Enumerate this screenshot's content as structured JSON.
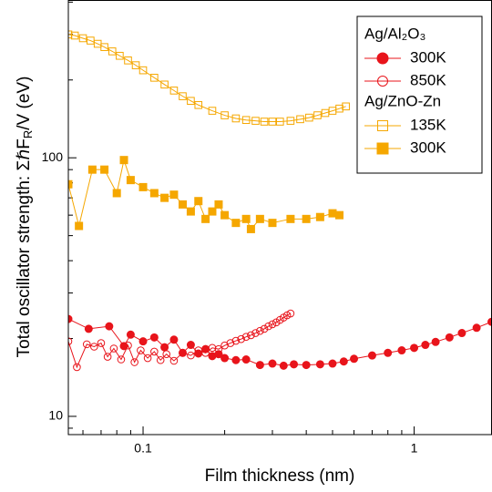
{
  "chart_data": {
    "type": "scatter",
    "xlabel": "Film thickness (nm)",
    "ylabel": [
      {
        "text": "Total oscillator strength: ΣℏF"
      },
      {
        "text": "R",
        "sub": true
      },
      {
        "text": "/V (eV)"
      }
    ],
    "xlog": true,
    "ylog": true,
    "xlim": [
      0.053,
      1.93
    ],
    "ylim": [
      8.5,
      406
    ],
    "xticks": [
      0.1,
      1
    ],
    "yticks": [
      10,
      100
    ],
    "xminorticks": [
      0.06,
      0.07,
      0.08,
      0.09,
      0.2,
      0.3,
      0.4,
      0.5,
      0.6,
      0.7,
      0.8,
      0.9
    ],
    "yminorticks": [
      9,
      20,
      30,
      40,
      50,
      60,
      70,
      80,
      90,
      200,
      300,
      400
    ],
    "series": [
      {
        "group": "Ag/Al₂O₃",
        "name": "300K",
        "color": "#e8141b",
        "marker": "circle",
        "filled": true,
        "x": [
          0.053,
          0.063,
          0.075,
          0.085,
          0.09,
          0.1,
          0.11,
          0.12,
          0.13,
          0.14,
          0.15,
          0.16,
          0.17,
          0.18,
          0.19,
          0.2,
          0.22,
          0.24,
          0.27,
          0.3,
          0.33,
          0.36,
          0.4,
          0.45,
          0.5,
          0.55,
          0.6,
          0.7,
          0.8,
          0.9,
          1.0,
          1.1,
          1.2,
          1.35,
          1.5,
          1.7,
          1.93
        ],
        "values": [
          23.8,
          21.8,
          22.3,
          18.7,
          20.7,
          19.5,
          20.2,
          18.5,
          19.8,
          17.6,
          18.9,
          17.5,
          18.2,
          17.1,
          17.4,
          16.8,
          16.5,
          16.6,
          15.8,
          16.0,
          15.7,
          15.9,
          15.8,
          15.9,
          16.0,
          16.3,
          16.7,
          17.2,
          17.6,
          18.0,
          18.4,
          18.9,
          19.4,
          20.2,
          21.0,
          22.0,
          23.2
        ]
      },
      {
        "group": "Ag/Al₂O₃",
        "name": "850K",
        "color": "#e8141b",
        "marker": "circle",
        "filled": false,
        "x": [
          0.053,
          0.057,
          0.062,
          0.066,
          0.07,
          0.074,
          0.078,
          0.083,
          0.088,
          0.093,
          0.098,
          0.104,
          0.11,
          0.116,
          0.122,
          0.13,
          0.14,
          0.15,
          0.16,
          0.17,
          0.18,
          0.19,
          0.2,
          0.21,
          0.22,
          0.23,
          0.24,
          0.25,
          0.26,
          0.27,
          0.28,
          0.29,
          0.3,
          0.31,
          0.32,
          0.33,
          0.34,
          0.35
        ],
        "values": [
          19.5,
          15.5,
          19.0,
          18.6,
          19.2,
          17.0,
          18.3,
          16.6,
          18.8,
          16.2,
          18.0,
          16.8,
          17.8,
          16.5,
          17.4,
          16.4,
          17.6,
          17.2,
          18.0,
          17.6,
          18.4,
          18.2,
          18.8,
          19.2,
          19.6,
          19.9,
          20.3,
          20.6,
          21.0,
          21.4,
          21.8,
          22.3,
          22.7,
          23.1,
          23.6,
          24.1,
          24.6,
          25.0
        ]
      },
      {
        "group": "Ag/ZnO-Zn",
        "name": "135K",
        "color": "#f5a700",
        "marker": "square",
        "filled": false,
        "x": [
          0.053,
          0.056,
          0.06,
          0.064,
          0.068,
          0.072,
          0.077,
          0.082,
          0.088,
          0.094,
          0.1,
          0.11,
          0.12,
          0.13,
          0.14,
          0.15,
          0.16,
          0.18,
          0.2,
          0.22,
          0.24,
          0.26,
          0.28,
          0.3,
          0.32,
          0.35,
          0.38,
          0.41,
          0.44,
          0.47,
          0.5,
          0.53,
          0.56
        ],
        "values": [
          300,
          297,
          290,
          284,
          276,
          268,
          258,
          248,
          238,
          228,
          218,
          204,
          192,
          182,
          173,
          166,
          160,
          152,
          146,
          142,
          140,
          139,
          138,
          138,
          138,
          139,
          141,
          143,
          146,
          149,
          152,
          155,
          158
        ]
      },
      {
        "group": "Ag/ZnO-Zn",
        "name": "300K",
        "color": "#f5a700",
        "marker": "square",
        "filled": true,
        "x": [
          0.053,
          0.058,
          0.065,
          0.072,
          0.08,
          0.085,
          0.09,
          0.1,
          0.11,
          0.12,
          0.13,
          0.14,
          0.15,
          0.16,
          0.17,
          0.18,
          0.19,
          0.2,
          0.22,
          0.24,
          0.25,
          0.27,
          0.3,
          0.35,
          0.4,
          0.45,
          0.5,
          0.53
        ],
        "values": [
          79,
          54.5,
          90,
          90,
          73,
          98,
          82,
          77,
          73,
          70,
          72,
          66,
          62,
          68,
          58,
          62,
          66,
          60,
          56,
          58,
          53,
          58,
          56,
          58,
          58,
          59,
          61,
          60
        ]
      }
    ]
  }
}
